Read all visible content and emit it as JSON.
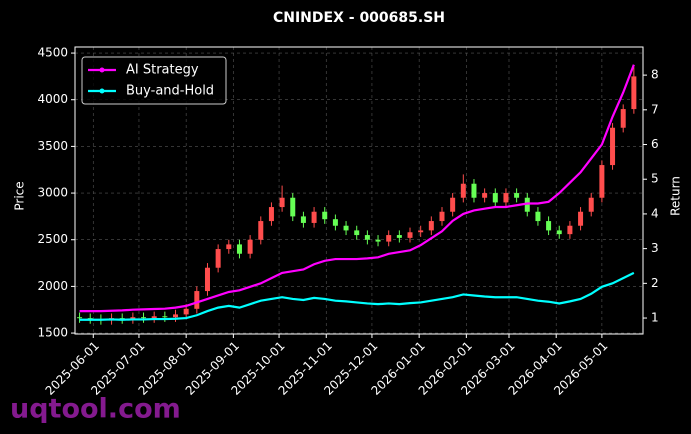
{
  "chart_data": {
    "type": "candlestick",
    "title": "CNINDEX - 000685.SH",
    "ylabel": "Price",
    "y2label": "Return",
    "watermark": "uqtool.com",
    "xlim": [
      "2025-05-20",
      "2026-05-28"
    ],
    "xticks": [
      "2025-06-01",
      "2025-07-01",
      "2025-08-01",
      "2025-09-01",
      "2025-10-01",
      "2025-11-01",
      "2025-12-01",
      "2026-01-01",
      "2026-02-01",
      "2026-03-01",
      "2026-04-01",
      "2026-05-01"
    ],
    "ylim": [
      1490,
      4565
    ],
    "yticks": [
      1500,
      2000,
      2500,
      3000,
      3500,
      4000,
      4500
    ],
    "y2lim": [
      0.54,
      8.81
    ],
    "y2ticks": [
      1,
      2,
      3,
      4,
      5,
      6,
      7,
      8
    ],
    "grid": true,
    "legend": "upper left",
    "up_color": "#ff4d4d",
    "down_color": "#66ff55",
    "x": [
      "2025-05-23",
      "2025-05-30",
      "2025-06-06",
      "2025-06-13",
      "2025-06-20",
      "2025-06-27",
      "2025-07-04",
      "2025-07-11",
      "2025-07-18",
      "2025-07-25",
      "2025-08-01",
      "2025-08-08",
      "2025-08-15",
      "2025-08-22",
      "2025-08-29",
      "2025-09-05",
      "2025-09-12",
      "2025-09-19",
      "2025-09-26",
      "2025-10-03",
      "2025-10-10",
      "2025-10-17",
      "2025-10-24",
      "2025-10-31",
      "2025-11-07",
      "2025-11-14",
      "2025-11-21",
      "2025-11-28",
      "2025-12-05",
      "2025-12-12",
      "2025-12-19",
      "2025-12-26",
      "2026-01-02",
      "2026-01-09",
      "2026-01-16",
      "2026-01-23",
      "2026-01-30",
      "2026-02-06",
      "2026-02-13",
      "2026-02-20",
      "2026-02-27",
      "2026-03-06",
      "2026-03-13",
      "2026-03-20",
      "2026-03-27",
      "2026-04-03",
      "2026-04-10",
      "2026-04-17",
      "2026-04-24",
      "2026-05-01",
      "2026-05-08",
      "2026-05-15",
      "2026-05-22"
    ],
    "open": [
      1670,
      1660,
      1650,
      1640,
      1660,
      1650,
      1670,
      1660,
      1680,
      1670,
      1700,
      1760,
      1950,
      2200,
      2400,
      2450,
      2350,
      2500,
      2700,
      2850,
      2950,
      2750,
      2680,
      2800,
      2720,
      2650,
      2600,
      2550,
      2500,
      2480,
      2550,
      2520,
      2580,
      2600,
      2700,
      2800,
      2950,
      3100,
      2950,
      3000,
      2900,
      3000,
      2950,
      2800,
      2700,
      2600,
      2560,
      2650,
      2800,
      2950,
      3300,
      3700,
      3900
    ],
    "high": [
      1720,
      1710,
      1700,
      1710,
      1710,
      1720,
      1720,
      1730,
      1730,
      1750,
      1810,
      2000,
      2250,
      2450,
      2500,
      2500,
      2550,
      2750,
      2900,
      3080,
      3000,
      2800,
      2850,
      2850,
      2770,
      2700,
      2650,
      2600,
      2550,
      2600,
      2600,
      2630,
      2650,
      2750,
      2850,
      3000,
      3200,
      3150,
      3050,
      3050,
      3050,
      3050,
      3000,
      2850,
      2750,
      2650,
      2700,
      2850,
      3000,
      3350,
      3750,
      3950,
      4350
    ],
    "low": [
      1610,
      1600,
      1590,
      1590,
      1600,
      1600,
      1610,
      1610,
      1620,
      1620,
      1650,
      1710,
      1900,
      2150,
      2350,
      2300,
      2300,
      2450,
      2650,
      2800,
      2700,
      2630,
      2630,
      2670,
      2600,
      2550,
      2500,
      2450,
      2430,
      2430,
      2470,
      2470,
      2530,
      2550,
      2650,
      2750,
      2900,
      2900,
      2900,
      2850,
      2850,
      2900,
      2750,
      2650,
      2550,
      2510,
      2510,
      2600,
      2750,
      2900,
      3250,
      3650,
      3850
    ],
    "close": [
      1660,
      1650,
      1640,
      1660,
      1650,
      1670,
      1660,
      1680,
      1670,
      1700,
      1760,
      1950,
      2200,
      2400,
      2450,
      2350,
      2500,
      2700,
      2850,
      2950,
      2750,
      2680,
      2800,
      2720,
      2650,
      2600,
      2550,
      2500,
      2480,
      2550,
      2520,
      2580,
      2600,
      2700,
      2800,
      2950,
      3100,
      2950,
      3000,
      2900,
      3000,
      2950,
      2800,
      2700,
      2600,
      2560,
      2650,
      2800,
      2950,
      3300,
      3700,
      3900,
      4250
    ],
    "series": [
      {
        "name": "AI Strategy",
        "color": "#ff00ff",
        "axis": "y2",
        "values": [
          1.2,
          1.2,
          1.2,
          1.21,
          1.22,
          1.24,
          1.25,
          1.26,
          1.27,
          1.3,
          1.35,
          1.45,
          1.55,
          1.65,
          1.75,
          1.8,
          1.9,
          2.0,
          2.15,
          2.3,
          2.35,
          2.4,
          2.55,
          2.65,
          2.7,
          2.7,
          2.7,
          2.72,
          2.75,
          2.85,
          2.9,
          2.95,
          3.1,
          3.3,
          3.5,
          3.8,
          4.0,
          4.1,
          4.15,
          4.2,
          4.2,
          4.25,
          4.3,
          4.3,
          4.35,
          4.6,
          4.9,
          5.2,
          5.6,
          6.0,
          6.8,
          7.5,
          8.3
        ]
      },
      {
        "name": "Buy-and-Hold",
        "color": "#00ffff",
        "axis": "y2",
        "values": [
          0.95,
          0.95,
          0.95,
          0.96,
          0.95,
          0.96,
          0.96,
          0.97,
          0.97,
          0.98,
          1.0,
          1.08,
          1.2,
          1.3,
          1.35,
          1.3,
          1.4,
          1.5,
          1.55,
          1.6,
          1.55,
          1.52,
          1.58,
          1.55,
          1.5,
          1.48,
          1.45,
          1.42,
          1.4,
          1.42,
          1.4,
          1.43,
          1.45,
          1.5,
          1.55,
          1.6,
          1.68,
          1.65,
          1.62,
          1.6,
          1.6,
          1.6,
          1.55,
          1.5,
          1.47,
          1.42,
          1.48,
          1.55,
          1.7,
          1.9,
          2.0,
          2.15,
          2.3
        ]
      }
    ]
  }
}
